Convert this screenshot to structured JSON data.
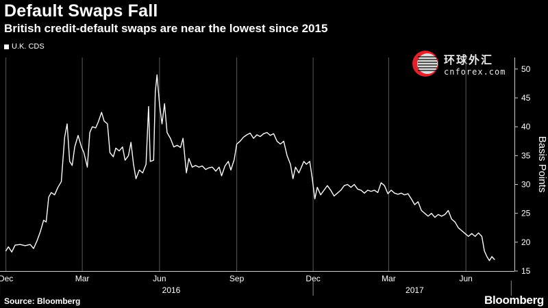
{
  "header": {
    "title": "Default Swaps Fall",
    "subtitle": "British credit-default swaps are near the lowest since 2015"
  },
  "legend": {
    "label": "U.K. CDS"
  },
  "watermark": {
    "cn": "环球外汇",
    "en": "cnforex.com"
  },
  "footer": {
    "source": "Source: Bloomberg",
    "brand": "Bloomberg"
  },
  "colors": {
    "background": "#000000",
    "line": "#ffffff",
    "grid": "#5a5a5a",
    "logo_red": "#e4202a"
  },
  "chart_data": {
    "type": "line",
    "title": "Default Swaps Fall",
    "subtitle": "British credit-default swaps are near the lowest since 2015",
    "ylabel": "Basis Points",
    "ylim": [
      15,
      52
    ],
    "yticks": [
      15,
      20,
      25,
      30,
      35,
      40,
      45,
      50
    ],
    "y_axis_side": "right",
    "grid": "vertical",
    "month_ticks": [
      {
        "date": "2015-12-01",
        "label": "Dec"
      },
      {
        "date": "2016-03-01",
        "label": "Mar"
      },
      {
        "date": "2016-06-01",
        "label": "Jun"
      },
      {
        "date": "2016-09-01",
        "label": "Sep"
      },
      {
        "date": "2016-12-01",
        "label": "Dec"
      },
      {
        "date": "2017-03-01",
        "label": "Mar"
      },
      {
        "date": "2017-06-01",
        "label": "Jun"
      }
    ],
    "year_labels": [
      {
        "year": "2016",
        "date": "2016-06-15"
      },
      {
        "year": "2017",
        "date": "2017-04-01"
      }
    ],
    "series": [
      {
        "name": "U.K. CDS",
        "points": [
          [
            "2015-12-01",
            18.5
          ],
          [
            "2015-12-04",
            19.2
          ],
          [
            "2015-12-08",
            18.3
          ],
          [
            "2015-12-12",
            19.5
          ],
          [
            "2015-12-18",
            19.6
          ],
          [
            "2015-12-24",
            19.4
          ],
          [
            "2015-12-30",
            19.6
          ],
          [
            "2016-01-03",
            18.9
          ],
          [
            "2016-01-07",
            20.2
          ],
          [
            "2016-01-11",
            21.8
          ],
          [
            "2016-01-15",
            23.8
          ],
          [
            "2016-01-18",
            23.5
          ],
          [
            "2016-01-21",
            27.8
          ],
          [
            "2016-01-24",
            28.6
          ],
          [
            "2016-01-28",
            28.2
          ],
          [
            "2016-02-01",
            29.5
          ],
          [
            "2016-02-05",
            30.5
          ],
          [
            "2016-02-09",
            38.2
          ],
          [
            "2016-02-12",
            40.5
          ],
          [
            "2016-02-15",
            34.0
          ],
          [
            "2016-02-18",
            33.3
          ],
          [
            "2016-02-21",
            36.5
          ],
          [
            "2016-02-25",
            38.5
          ],
          [
            "2016-02-29",
            36.5
          ],
          [
            "2016-03-03",
            35.5
          ],
          [
            "2016-03-07",
            33.0
          ],
          [
            "2016-03-10",
            39.0
          ],
          [
            "2016-03-13",
            40.0
          ],
          [
            "2016-03-17",
            39.8
          ],
          [
            "2016-03-20",
            40.8
          ],
          [
            "2016-03-24",
            42.5
          ],
          [
            "2016-03-27",
            41.0
          ],
          [
            "2016-03-31",
            40.5
          ],
          [
            "2016-04-03",
            35.5
          ],
          [
            "2016-04-07",
            34.8
          ],
          [
            "2016-04-10",
            36.3
          ],
          [
            "2016-04-14",
            35.8
          ],
          [
            "2016-04-18",
            36.5
          ],
          [
            "2016-04-21",
            34.2
          ],
          [
            "2016-04-25",
            35.0
          ],
          [
            "2016-04-28",
            37.3
          ],
          [
            "2016-05-01",
            33.5
          ],
          [
            "2016-05-04",
            31.0
          ],
          [
            "2016-05-08",
            32.5
          ],
          [
            "2016-05-12",
            32.0
          ],
          [
            "2016-05-16",
            33.5
          ],
          [
            "2016-05-19",
            43.5
          ],
          [
            "2016-05-21",
            34.0
          ],
          [
            "2016-05-25",
            34.2
          ],
          [
            "2016-05-27",
            46.0
          ],
          [
            "2016-05-29",
            49.0
          ],
          [
            "2016-06-01",
            44.0
          ],
          [
            "2016-06-04",
            40.5
          ],
          [
            "2016-06-07",
            44.0
          ],
          [
            "2016-06-10",
            39.0
          ],
          [
            "2016-06-14",
            38.0
          ],
          [
            "2016-06-18",
            36.5
          ],
          [
            "2016-06-22",
            36.8
          ],
          [
            "2016-06-26",
            36.4
          ],
          [
            "2016-06-29",
            38.0
          ],
          [
            "2016-07-03",
            32.0
          ],
          [
            "2016-07-06",
            34.5
          ],
          [
            "2016-07-10",
            33.0
          ],
          [
            "2016-07-14",
            33.3
          ],
          [
            "2016-07-18",
            33.0
          ],
          [
            "2016-07-22",
            33.2
          ],
          [
            "2016-07-26",
            32.6
          ],
          [
            "2016-07-30",
            32.9
          ],
          [
            "2016-08-03",
            33.0
          ],
          [
            "2016-08-07",
            32.3
          ],
          [
            "2016-08-11",
            33.0
          ],
          [
            "2016-08-14",
            31.5
          ],
          [
            "2016-08-18",
            33.2
          ],
          [
            "2016-08-22",
            34.0
          ],
          [
            "2016-08-25",
            32.5
          ],
          [
            "2016-08-29",
            34.3
          ],
          [
            "2016-09-01",
            37.0
          ],
          [
            "2016-09-05",
            37.5
          ],
          [
            "2016-09-09",
            38.2
          ],
          [
            "2016-09-13",
            38.6
          ],
          [
            "2016-09-17",
            38.9
          ],
          [
            "2016-09-21",
            38.0
          ],
          [
            "2016-09-25",
            38.6
          ],
          [
            "2016-09-29",
            38.3
          ],
          [
            "2016-10-03",
            38.8
          ],
          [
            "2016-10-07",
            39.0
          ],
          [
            "2016-10-11",
            38.5
          ],
          [
            "2016-10-15",
            38.8
          ],
          [
            "2016-10-19",
            37.5
          ],
          [
            "2016-10-23",
            37.0
          ],
          [
            "2016-10-27",
            37.5
          ],
          [
            "2016-10-31",
            35.0
          ],
          [
            "2016-11-04",
            33.5
          ],
          [
            "2016-11-07",
            31.0
          ],
          [
            "2016-11-10",
            33.0
          ],
          [
            "2016-11-14",
            32.0
          ],
          [
            "2016-11-17",
            33.0
          ],
          [
            "2016-11-20",
            34.0
          ],
          [
            "2016-11-23",
            33.5
          ],
          [
            "2016-11-27",
            34.0
          ],
          [
            "2016-11-30",
            31.0
          ],
          [
            "2016-12-03",
            27.5
          ],
          [
            "2016-12-06",
            29.5
          ],
          [
            "2016-12-10",
            28.2
          ],
          [
            "2016-12-14",
            29.0
          ],
          [
            "2016-12-18",
            29.8
          ],
          [
            "2016-12-22",
            29.0
          ],
          [
            "2016-12-26",
            28.0
          ],
          [
            "2016-12-30",
            28.5
          ],
          [
            "2017-01-03",
            29.0
          ],
          [
            "2017-01-07",
            29.8
          ],
          [
            "2017-01-11",
            30.0
          ],
          [
            "2017-01-15",
            29.5
          ],
          [
            "2017-01-19",
            30.0
          ],
          [
            "2017-01-23",
            29.2
          ],
          [
            "2017-01-27",
            29.0
          ],
          [
            "2017-01-31",
            28.5
          ],
          [
            "2017-02-04",
            29.0
          ],
          [
            "2017-02-08",
            28.8
          ],
          [
            "2017-02-12",
            29.0
          ],
          [
            "2017-02-16",
            28.6
          ],
          [
            "2017-02-20",
            30.3
          ],
          [
            "2017-02-24",
            29.8
          ],
          [
            "2017-02-28",
            28.4
          ],
          [
            "2017-03-04",
            29.0
          ],
          [
            "2017-03-08",
            28.5
          ],
          [
            "2017-03-12",
            28.3
          ],
          [
            "2017-03-16",
            28.5
          ],
          [
            "2017-03-20",
            28.2
          ],
          [
            "2017-03-24",
            28.4
          ],
          [
            "2017-03-28",
            27.5
          ],
          [
            "2017-04-01",
            26.5
          ],
          [
            "2017-04-05",
            27.0
          ],
          [
            "2017-04-09",
            25.5
          ],
          [
            "2017-04-13",
            25.0
          ],
          [
            "2017-04-17",
            24.5
          ],
          [
            "2017-04-21",
            25.0
          ],
          [
            "2017-04-25",
            24.3
          ],
          [
            "2017-04-29",
            24.8
          ],
          [
            "2017-05-03",
            24.5
          ],
          [
            "2017-05-07",
            24.8
          ],
          [
            "2017-05-11",
            25.5
          ],
          [
            "2017-05-15",
            24.0
          ],
          [
            "2017-05-19",
            23.5
          ],
          [
            "2017-05-23",
            22.5
          ],
          [
            "2017-05-27",
            22.0
          ],
          [
            "2017-05-31",
            21.5
          ],
          [
            "2017-06-04",
            21.0
          ],
          [
            "2017-06-08",
            21.5
          ],
          [
            "2017-06-12",
            21.0
          ],
          [
            "2017-06-16",
            21.6
          ],
          [
            "2017-06-20",
            21.0
          ],
          [
            "2017-06-23",
            18.5
          ],
          [
            "2017-06-26",
            17.5
          ],
          [
            "2017-06-29",
            16.8
          ],
          [
            "2017-07-02",
            17.5
          ],
          [
            "2017-07-05",
            17.0
          ]
        ]
      }
    ]
  }
}
